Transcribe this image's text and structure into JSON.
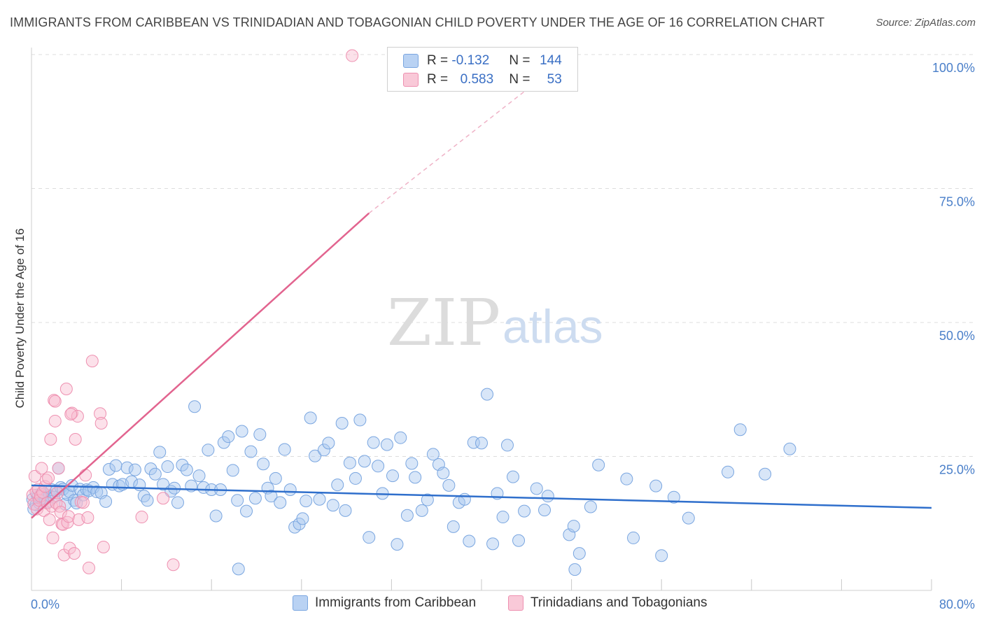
{
  "title": "IMMIGRANTS FROM CARIBBEAN VS TRINIDADIAN AND TOBAGONIAN CHILD POVERTY UNDER THE AGE OF 16 CORRELATION CHART",
  "source": "Source: ZipAtlas.com",
  "watermark": {
    "zip": "ZIP",
    "atlas": "atlas"
  },
  "legend": {
    "r_label": "R =",
    "n_label": "N =",
    "items": [
      {
        "r": "-0.132",
        "n": "144",
        "color": "#a9c7ef",
        "stroke": "#7aa6e0"
      },
      {
        "r": "0.583",
        "n": "53",
        "color": "#f8bcd0",
        "stroke": "#ee90b0"
      }
    ]
  },
  "chart_data": {
    "type": "scatter",
    "title": "IMMIGRANTS FROM CARIBBEAN VS TRINIDADIAN AND TOBAGONIAN CHILD POVERTY UNDER THE AGE OF 16 CORRELATION CHART",
    "xlabel": "",
    "ylabel": "Child Poverty Under the Age of 16",
    "xlim": [
      0,
      80
    ],
    "ylim": [
      0,
      100
    ],
    "x_tick_labels": [
      "0.0%",
      "80.0%"
    ],
    "y_tick_labels": [
      "100.0%",
      "75.0%",
      "50.0%",
      "25.0%"
    ],
    "y_ticks": [
      100,
      75,
      50,
      25
    ],
    "grid": "horizontal dashed",
    "legend_position": "bottom",
    "series": [
      {
        "name": "Immigrants from Caribbean",
        "color": "#7aa6e0",
        "fill": "rgba(169,199,239,0.45)",
        "trend": {
          "x": [
            0,
            80
          ],
          "y": [
            19.6,
            15.4
          ],
          "color": "#2f6fcc"
        },
        "points": [
          [
            0.1,
            17
          ],
          [
            0.2,
            15.2
          ],
          [
            0.4,
            16
          ],
          [
            0.5,
            17.8
          ],
          [
            0.6,
            17.5
          ],
          [
            0.7,
            16.3
          ],
          [
            0.8,
            17.1
          ],
          [
            0.9,
            17.9
          ],
          [
            1.0,
            16.8
          ],
          [
            1.1,
            18
          ],
          [
            1.2,
            17.2
          ],
          [
            1.4,
            16.5
          ],
          [
            1.6,
            17.7
          ],
          [
            1.8,
            18.8
          ],
          [
            2.0,
            17.4
          ],
          [
            2.2,
            18.6
          ],
          [
            2.4,
            22.8
          ],
          [
            2.6,
            19.2
          ],
          [
            2.8,
            18.9
          ],
          [
            3.0,
            16.1
          ],
          [
            3.2,
            17.9
          ],
          [
            3.4,
            18.4
          ],
          [
            3.6,
            19.6
          ],
          [
            3.8,
            16.8
          ],
          [
            4.0,
            16.3
          ],
          [
            4.3,
            18.9
          ],
          [
            4.6,
            17.8
          ],
          [
            4.9,
            18.8
          ],
          [
            5.1,
            18.6
          ],
          [
            5.5,
            19.2
          ],
          [
            5.8,
            18.4
          ],
          [
            6.2,
            18.2
          ],
          [
            6.6,
            16.6
          ],
          [
            6.9,
            22.6
          ],
          [
            7.2,
            19.8
          ],
          [
            7.5,
            23.3
          ],
          [
            7.8,
            19.5
          ],
          [
            8.1,
            19.8
          ],
          [
            8.5,
            22.9
          ],
          [
            8.9,
            20.3
          ],
          [
            9.2,
            22.5
          ],
          [
            9.6,
            19.7
          ],
          [
            10.0,
            17.6
          ],
          [
            10.3,
            16.8
          ],
          [
            10.6,
            22.7
          ],
          [
            11.0,
            21.7
          ],
          [
            11.4,
            25.8
          ],
          [
            11.7,
            19.8
          ],
          [
            12.1,
            23.1
          ],
          [
            12.4,
            18.5
          ],
          [
            12.7,
            19.1
          ],
          [
            13.0,
            16.4
          ],
          [
            13.4,
            23.4
          ],
          [
            13.8,
            22.5
          ],
          [
            14.2,
            19.5
          ],
          [
            14.5,
            34.3
          ],
          [
            14.9,
            21.4
          ],
          [
            15.3,
            19.2
          ],
          [
            15.7,
            26.2
          ],
          [
            16.0,
            18.8
          ],
          [
            16.4,
            13.9
          ],
          [
            16.8,
            18.8
          ],
          [
            17.1,
            27.6
          ],
          [
            17.5,
            28.7
          ],
          [
            17.9,
            22.4
          ],
          [
            18.3,
            16.8
          ],
          [
            18.7,
            29.7
          ],
          [
            19.1,
            14.8
          ],
          [
            19.5,
            25.9
          ],
          [
            19.9,
            17.2
          ],
          [
            20.3,
            29.1
          ],
          [
            20.6,
            23.6
          ],
          [
            21.0,
            19.1
          ],
          [
            21.3,
            17.6
          ],
          [
            21.7,
            20.9
          ],
          [
            22.1,
            16.4
          ],
          [
            22.5,
            26.3
          ],
          [
            23.0,
            18.8
          ],
          [
            23.4,
            11.8
          ],
          [
            23.8,
            12.4
          ],
          [
            24.1,
            13.4
          ],
          [
            24.4,
            16.7
          ],
          [
            24.8,
            32.2
          ],
          [
            25.2,
            25.1
          ],
          [
            25.6,
            17
          ],
          [
            26.0,
            26.2
          ],
          [
            26.4,
            27.5
          ],
          [
            26.8,
            15.9
          ],
          [
            27.2,
            19.7
          ],
          [
            27.6,
            31.2
          ],
          [
            27.9,
            14.9
          ],
          [
            28.3,
            23.8
          ],
          [
            28.8,
            20.9
          ],
          [
            29.2,
            31.8
          ],
          [
            29.6,
            24.1
          ],
          [
            30.0,
            9.9
          ],
          [
            30.4,
            27.6
          ],
          [
            30.8,
            23.2
          ],
          [
            31.2,
            18.1
          ],
          [
            31.6,
            27.2
          ],
          [
            32.1,
            21.4
          ],
          [
            32.5,
            8.6
          ],
          [
            32.8,
            28.5
          ],
          [
            33.4,
            14
          ],
          [
            33.8,
            23.7
          ],
          [
            34.1,
            21.1
          ],
          [
            34.7,
            14.9
          ],
          [
            35.2,
            16.9
          ],
          [
            35.7,
            25.4
          ],
          [
            36.2,
            23.5
          ],
          [
            36.6,
            21.9
          ],
          [
            37.1,
            19.6
          ],
          [
            37.5,
            11.9
          ],
          [
            38.0,
            16.4
          ],
          [
            38.5,
            17
          ],
          [
            38.9,
            9.2
          ],
          [
            39.3,
            27.6
          ],
          [
            40.0,
            27.5
          ],
          [
            40.5,
            36.6
          ],
          [
            41.0,
            8.7
          ],
          [
            41.4,
            18.1
          ],
          [
            41.9,
            13.7
          ],
          [
            42.3,
            27.1
          ],
          [
            42.8,
            21.2
          ],
          [
            43.3,
            9.3
          ],
          [
            43.8,
            14.8
          ],
          [
            44.9,
            19
          ],
          [
            45.6,
            15
          ],
          [
            45.9,
            17.6
          ],
          [
            47.8,
            10.4
          ],
          [
            48.2,
            12
          ],
          [
            48.7,
            6.9
          ],
          [
            49.7,
            15.6
          ],
          [
            50.4,
            23.4
          ],
          [
            52.9,
            20.8
          ],
          [
            53.5,
            9.8
          ],
          [
            55.5,
            19.5
          ],
          [
            56.0,
            6.5
          ],
          [
            57.1,
            17.4
          ],
          [
            58.4,
            13.5
          ],
          [
            61.9,
            22.1
          ],
          [
            63.0,
            30
          ],
          [
            65.2,
            21.7
          ],
          [
            67.4,
            26.4
          ],
          [
            48.3,
            3.9
          ],
          [
            18.4,
            4
          ]
        ]
      },
      {
        "name": "Trinidadians and Tobagonians",
        "color": "#ee90b0",
        "fill": "rgba(248,188,208,0.45)",
        "trend": {
          "x": [
            0,
            30
          ],
          "y": [
            13.5,
            70.4
          ],
          "dashed_to": [
            48,
            100
          ],
          "color": "#e2648f"
        },
        "points": [
          [
            0.1,
            17.8
          ],
          [
            0.2,
            16.1
          ],
          [
            0.3,
            21.3
          ],
          [
            0.4,
            18.4
          ],
          [
            0.5,
            15.2
          ],
          [
            0.6,
            18.9
          ],
          [
            0.7,
            16.8
          ],
          [
            0.8,
            17.6
          ],
          [
            0.9,
            22.8
          ],
          [
            1.0,
            18.3
          ],
          [
            1.1,
            14.9
          ],
          [
            1.2,
            19.4
          ],
          [
            1.3,
            20.6
          ],
          [
            1.4,
            16.3
          ],
          [
            1.5,
            21
          ],
          [
            1.6,
            13.2
          ],
          [
            1.7,
            28.2
          ],
          [
            1.8,
            15.7
          ],
          [
            1.9,
            9.8
          ],
          [
            2.0,
            35.5
          ],
          [
            2.1,
            31.6
          ],
          [
            2.2,
            16.3
          ],
          [
            2.3,
            18.2
          ],
          [
            2.4,
            22.8
          ],
          [
            2.5,
            15.7
          ],
          [
            2.6,
            14.6
          ],
          [
            2.7,
            12.4
          ],
          [
            2.8,
            12.3
          ],
          [
            2.9,
            6.6
          ],
          [
            3.1,
            37.6
          ],
          [
            3.2,
            12.7
          ],
          [
            3.3,
            13.8
          ],
          [
            3.4,
            7.9
          ],
          [
            3.6,
            33.1
          ],
          [
            3.8,
            6.9
          ],
          [
            3.9,
            28.2
          ],
          [
            4.1,
            32.5
          ],
          [
            4.2,
            13.2
          ],
          [
            4.4,
            16.5
          ],
          [
            4.6,
            16.4
          ],
          [
            4.8,
            21.5
          ],
          [
            5.0,
            13.6
          ],
          [
            5.1,
            4.2
          ],
          [
            5.4,
            42.8
          ],
          [
            6.1,
            33
          ],
          [
            6.2,
            31.2
          ],
          [
            6.4,
            8.1
          ],
          [
            9.8,
            13.7
          ],
          [
            11.7,
            17.2
          ],
          [
            12.6,
            4.8
          ],
          [
            28.5,
            99.8
          ],
          [
            2.1,
            35.3
          ],
          [
            3.5,
            32.9
          ]
        ]
      }
    ]
  },
  "bottom_legend": [
    "Immigrants from Caribbean",
    "Trinidadians and Tobagonians"
  ]
}
